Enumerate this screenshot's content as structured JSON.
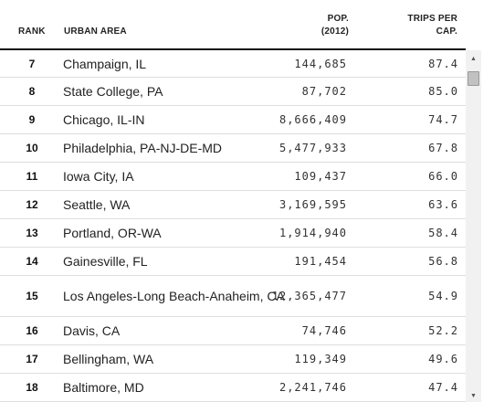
{
  "header": {
    "rank": "RANK",
    "area": "URBAN AREA",
    "pop_line1": "POP.",
    "pop_line2": "(2012)",
    "trips_line1": "TRIPS PER",
    "trips_line2": "CAP."
  },
  "rows": [
    {
      "rank": "7",
      "area": "Champaign, IL",
      "pop": "144,685",
      "trips": "87.4"
    },
    {
      "rank": "8",
      "area": "State College, PA",
      "pop": "87,702",
      "trips": "85.0"
    },
    {
      "rank": "9",
      "area": "Chicago, IL-IN",
      "pop": "8,666,409",
      "trips": "74.7"
    },
    {
      "rank": "10",
      "area": "Philadelphia, PA-NJ-DE-MD",
      "pop": "5,477,933",
      "trips": "67.8"
    },
    {
      "rank": "11",
      "area": "Iowa City, IA",
      "pop": "109,437",
      "trips": "66.0"
    },
    {
      "rank": "12",
      "area": "Seattle, WA",
      "pop": "3,169,595",
      "trips": "63.6"
    },
    {
      "rank": "13",
      "area": "Portland, OR-WA",
      "pop": "1,914,940",
      "trips": "58.4"
    },
    {
      "rank": "14",
      "area": "Gainesville, FL",
      "pop": "191,454",
      "trips": "56.8"
    },
    {
      "rank": "15",
      "area": "Los Angeles-Long Beach-Anaheim, CA",
      "pop": "12,365,477",
      "trips": "54.9"
    },
    {
      "rank": "16",
      "area": "Davis, CA",
      "pop": "74,746",
      "trips": "52.2"
    },
    {
      "rank": "17",
      "area": "Bellingham, WA",
      "pop": "119,349",
      "trips": "49.6"
    },
    {
      "rank": "18",
      "area": "Baltimore, MD",
      "pop": "2,241,746",
      "trips": "47.4"
    }
  ],
  "scrollbar": {
    "up_icon": "triangle-up-icon",
    "down_icon": "triangle-down-icon",
    "scroll_fraction": 0.02
  }
}
